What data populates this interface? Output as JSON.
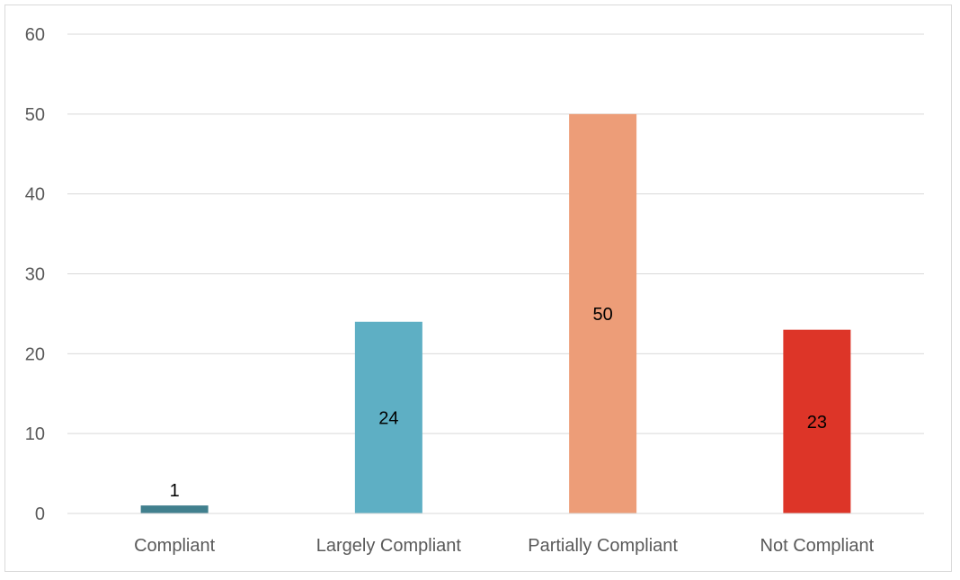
{
  "chart_data": {
    "type": "bar",
    "title": "",
    "xlabel": "",
    "ylabel": "",
    "categories": [
      "Compliant",
      "Largely Compliant",
      "Partially Compliant",
      "Not Compliant"
    ],
    "values": [
      1,
      24,
      50,
      23
    ],
    "data_labels": [
      "1",
      "24",
      "50",
      "23"
    ],
    "bar_colors": [
      "#41808e",
      "#5eafc4",
      "#ed9d78",
      "#dd3528"
    ],
    "ylim": [
      0,
      60
    ],
    "yticks": [
      0,
      10,
      20,
      30,
      40,
      50,
      60
    ],
    "ytick_labels": [
      "0",
      "10",
      "20",
      "30",
      "40",
      "50",
      "60"
    ],
    "grid": true,
    "gridline_color": "#d9d9d9",
    "legend": "none"
  }
}
